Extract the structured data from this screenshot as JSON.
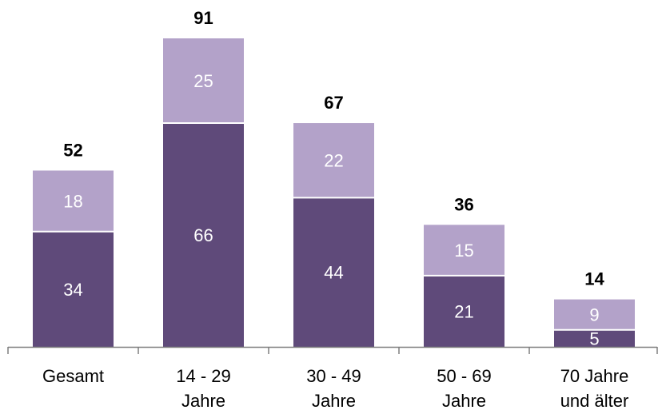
{
  "chart_data": {
    "type": "bar",
    "stacked": true,
    "categories": [
      [
        "Gesamt"
      ],
      [
        "14 - 29",
        "Jahre"
      ],
      [
        "30 - 49",
        "Jahre"
      ],
      [
        "50 - 69",
        "Jahre"
      ],
      [
        "70 Jahre",
        "und älter"
      ]
    ],
    "series": [
      {
        "values": [
          34,
          66,
          44,
          21,
          5
        ]
      },
      {
        "values": [
          18,
          25,
          22,
          15,
          9
        ]
      }
    ],
    "totals": [
      52,
      91,
      67,
      36,
      14
    ],
    "ylim": [
      0,
      100
    ],
    "grid": false,
    "legend": "none",
    "colors": {
      "series": [
        "#5f4a7a",
        "#b3a2c9"
      ],
      "segment_label": "#ffffff",
      "category_label": "#000000",
      "total_label": "#000000",
      "axis": "#7f7f7f",
      "background": "#ffffff"
    }
  }
}
